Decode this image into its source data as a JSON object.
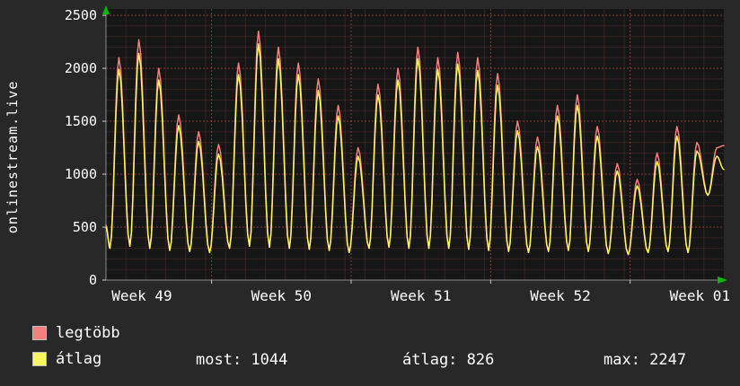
{
  "app": {
    "title_vertical": "onlinestream.live"
  },
  "colors": {
    "background": "#282828",
    "plot_background": "#161616",
    "legtobb": "#f47f7f",
    "atlag": "#f8f75f",
    "arrow": "#00bb00",
    "text": "#ffffff"
  },
  "legend": [
    {
      "label": "legtöbb",
      "color": "#f47f7f"
    },
    {
      "label": "átlag",
      "color": "#f8f75f"
    }
  ],
  "stats": [
    {
      "label": "most:",
      "value": "1044"
    },
    {
      "label": "átlag:",
      "value": "826"
    },
    {
      "label": "max:",
      "value": "2247"
    }
  ],
  "chart_data": {
    "type": "line",
    "title": "",
    "ylabel_vertical": "onlinestream.live",
    "xlabel": "",
    "ylim": [
      0,
      2500
    ],
    "ymax_scale": 2560,
    "yticks": [
      0,
      500,
      1000,
      1500,
      2000,
      2500
    ],
    "grid": "on",
    "legend_position": "bottom-left",
    "days_total": 31,
    "week_labels": [
      {
        "label": "Week 49",
        "day": 1.8
      },
      {
        "label": "Week 50",
        "day": 8.8
      },
      {
        "label": "Week 51",
        "day": 15.8
      },
      {
        "label": "Week 52",
        "day": 22.8
      },
      {
        "label": "Week 01",
        "day": 29.8
      }
    ],
    "week_boundaries": [
      5.3,
      12.3,
      19.3,
      26.3
    ],
    "troughs": [
      300,
      320,
      300,
      280,
      270,
      260,
      300,
      320,
      310,
      300,
      290,
      280,
      260,
      300,
      310,
      300,
      300,
      300,
      290,
      280,
      270,
      260,
      270,
      280,
      270,
      250,
      240,
      260,
      270,
      260,
      800
    ],
    "series": [
      {
        "name": "legtöbb",
        "color": "#f47f7f",
        "start": 520,
        "end": 1270,
        "peaks": [
          2100,
          2270,
          2000,
          1560,
          1400,
          1280,
          2050,
          2350,
          2200,
          2050,
          1900,
          1650,
          1250,
          1850,
          2000,
          2200,
          2100,
          2150,
          2100,
          1950,
          1500,
          1350,
          1650,
          1750,
          1450,
          1100,
          950,
          1200,
          1450,
          1300,
          1250
        ]
      },
      {
        "name": "átlag",
        "color": "#f8f75f",
        "start": 500,
        "end": 1044,
        "peaks": [
          1990,
          2140,
          1890,
          1460,
          1310,
          1190,
          1940,
          2230,
          2090,
          1940,
          1790,
          1550,
          1170,
          1750,
          1890,
          2090,
          1990,
          2040,
          1980,
          1840,
          1410,
          1260,
          1550,
          1650,
          1360,
          1030,
          890,
          1120,
          1360,
          1220,
          1170
        ]
      }
    ]
  }
}
